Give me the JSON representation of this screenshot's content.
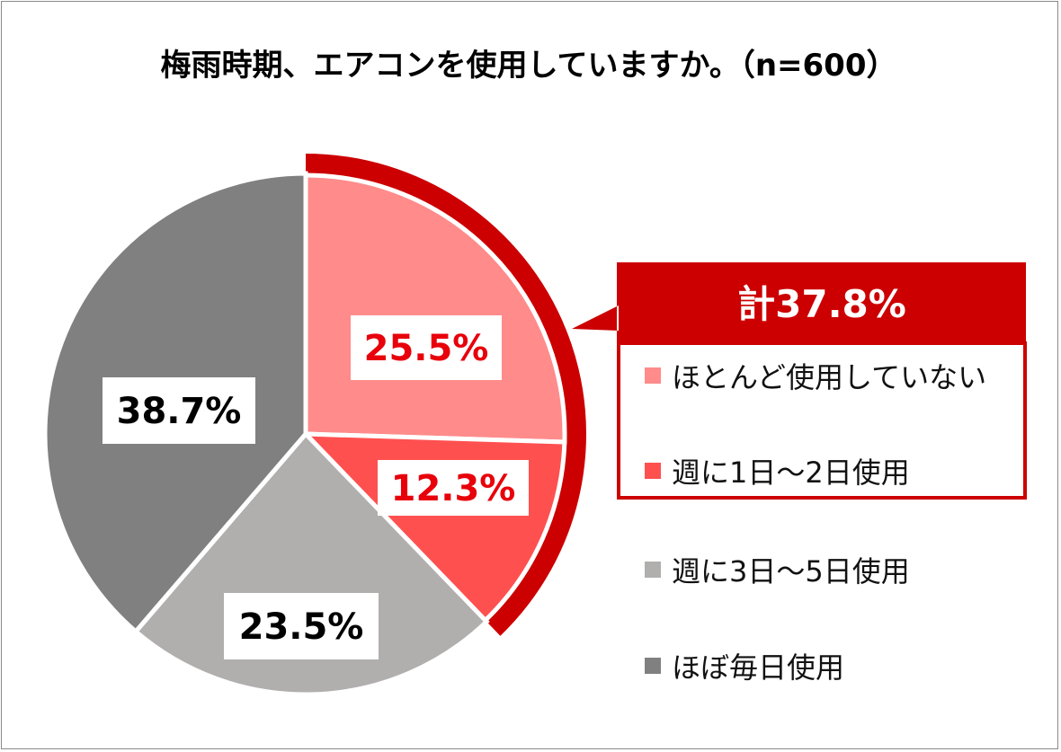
{
  "chart_data": {
    "type": "pie",
    "title": "梅雨時期、エアコンを使用していますか。（n=600）",
    "slices": [
      {
        "label": "ほとんど使用していない",
        "value": 25.5,
        "value_label": "25.5%",
        "color": "#ff8b8b",
        "label_color": "#e8000b"
      },
      {
        "label": "週に1日～2日使用",
        "value": 12.3,
        "value_label": "12.3%",
        "color": "#ff5050",
        "label_color": "#e8000b"
      },
      {
        "label": "週に3日～5日使用",
        "value": 23.5,
        "value_label": "23.5%",
        "color": "#b1aeae",
        "label_color": "#000000"
      },
      {
        "label": "ほぼ毎日使用",
        "value": 38.7,
        "value_label": "38.7%",
        "color": "#808080",
        "label_color": "#000000"
      }
    ],
    "start_angle": "12 o'clock",
    "direction": "clockwise",
    "highlight": {
      "slices": [
        "ほとんど使用していない",
        "週に1日～2日使用"
      ],
      "total_label": "計37.8%",
      "color": "#cc0000"
    },
    "legend_position": "right"
  }
}
